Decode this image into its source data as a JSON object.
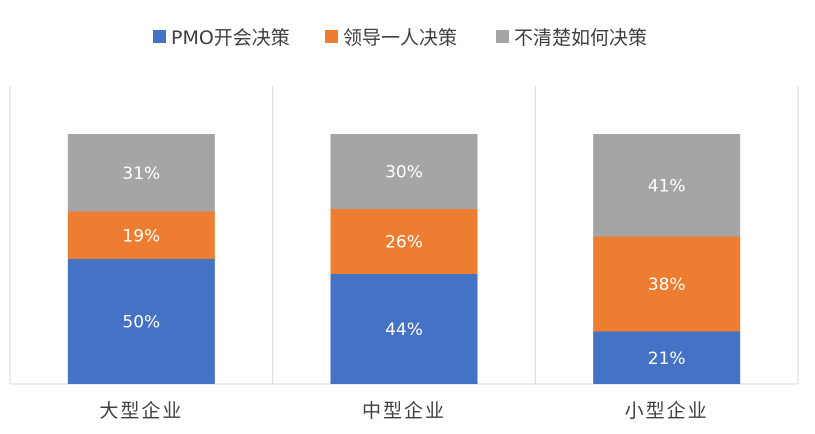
{
  "chart_data": {
    "type": "bar",
    "stacked": true,
    "categories": [
      "大型企业",
      "中型企业",
      "小型企业"
    ],
    "series": [
      {
        "name": "PMO开会决策",
        "color": "#4472C4",
        "values": [
          50,
          44,
          21
        ],
        "labels": [
          "50%",
          "44%",
          "21%"
        ]
      },
      {
        "name": "领导一人决策",
        "color": "#ED7D31",
        "values": [
          19,
          26,
          38
        ],
        "labels": [
          "19%",
          "26%",
          "38%"
        ]
      },
      {
        "name": "不清楚如何决策",
        "color": "#A5A5A5",
        "values": [
          31,
          30,
          41
        ],
        "labels": [
          "31%",
          "30%",
          "41%"
        ]
      }
    ],
    "ylim": [
      0,
      100
    ],
    "legend_position": "top",
    "grid": "vertical-separators"
  }
}
